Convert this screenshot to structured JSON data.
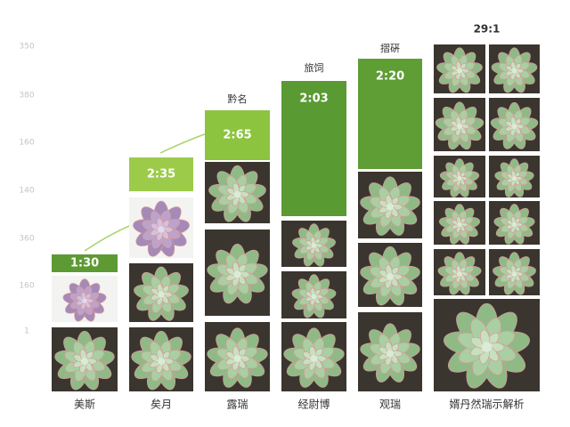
{
  "y_axis_labels": [
    "350",
    "380",
    "160",
    "140",
    "360",
    "160",
    "1"
  ],
  "columns": [
    {
      "badge": "1:30",
      "label": "美斯"
    },
    {
      "badge": "2:35",
      "label": "矣月"
    },
    {
      "top_label": "黔名",
      "badge": "2:65",
      "label": "露瑞"
    },
    {
      "top_label": "旅饲",
      "badge": "2:03",
      "label": "经尉博"
    },
    {
      "top_label": "摺硏",
      "badge": "2:20",
      "label": "观瑞"
    },
    {
      "top_label": "29:1",
      "label": "婿丹然瑞示解析"
    }
  ]
}
